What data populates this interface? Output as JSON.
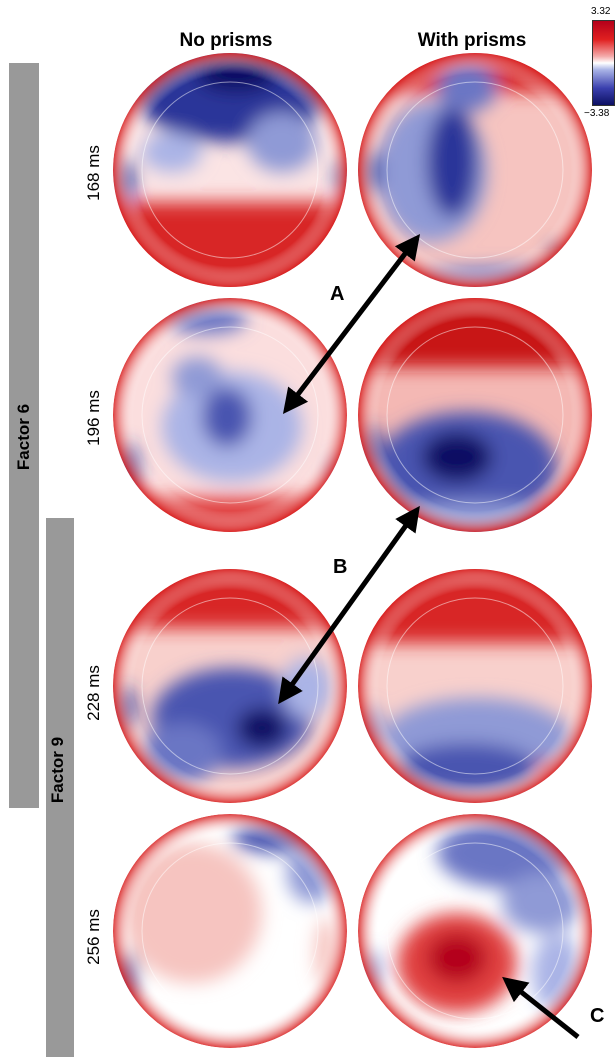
{
  "columns": [
    "No prisms",
    "With prisms"
  ],
  "factors": [
    "Factor 6",
    "Factor 9"
  ],
  "times": [
    "168 ms",
    "196 ms",
    "228 ms",
    "256 ms"
  ],
  "colorbar": {
    "max": "3.32",
    "min": "−3.38",
    "high_color": "#b4001a",
    "low_color": "#0c1063",
    "mid_color": "#ffffff"
  },
  "arrows": [
    "A",
    "B",
    "C"
  ],
  "colors": {
    "red": "#d81e1e",
    "blue": "#2a3599",
    "factor_bar": "#999999"
  }
}
